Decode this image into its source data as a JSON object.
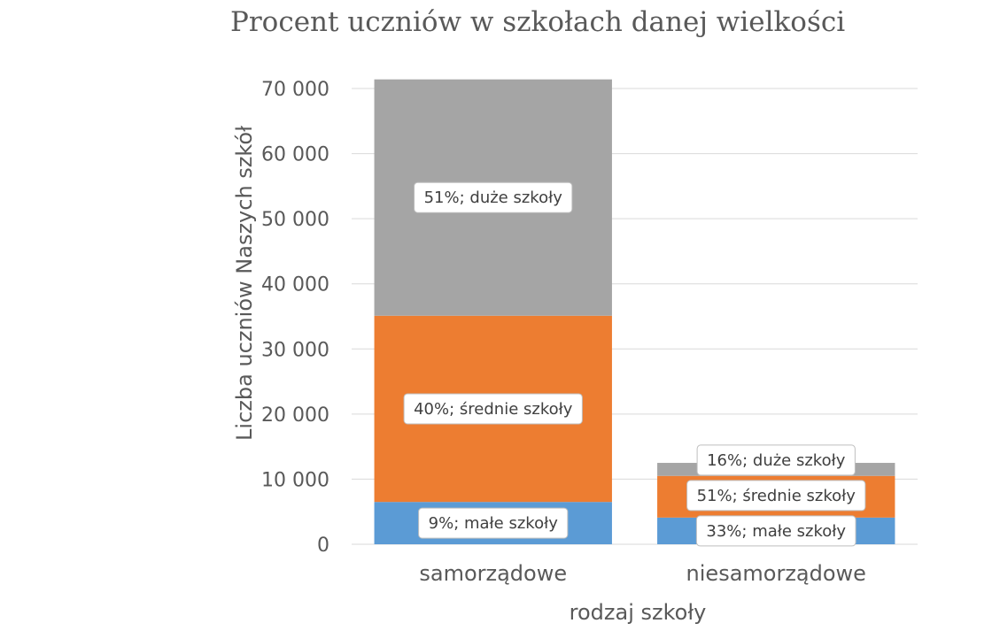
{
  "chart_data": {
    "type": "bar",
    "stacked": true,
    "title": "Procent uczniów w szkołach danej wielkości",
    "xlabel": "rodzaj szkoły",
    "ylabel": "Liczba uczniów Naszych szkół",
    "ylim": [
      0,
      70000
    ],
    "yticks": [
      0,
      10000,
      20000,
      30000,
      40000,
      50000,
      60000,
      70000
    ],
    "ytick_labels": [
      "0",
      "10 000",
      "20 000",
      "30 000",
      "40 000",
      "50 000",
      "60 000",
      "70 000"
    ],
    "grid": true,
    "categories": [
      "samorządowe",
      "niesamorządowe"
    ],
    "series": [
      {
        "name": "małe szkoły",
        "color": "#5b9bd5",
        "values": [
          6500,
          4100
        ],
        "labels": [
          "9%; małe szkoły",
          "33%; małe szkoły"
        ]
      },
      {
        "name": "średnie szkoły",
        "color": "#ed7d31",
        "values": [
          28600,
          6400
        ],
        "labels": [
          "40%; średnie szkoły",
          "51%; średnie szkoły"
        ]
      },
      {
        "name": "duże szkoły",
        "color": "#a5a5a5",
        "values": [
          36300,
          2000
        ],
        "labels": [
          "51%; duże szkoły",
          "16%; duże szkoły"
        ]
      }
    ]
  }
}
